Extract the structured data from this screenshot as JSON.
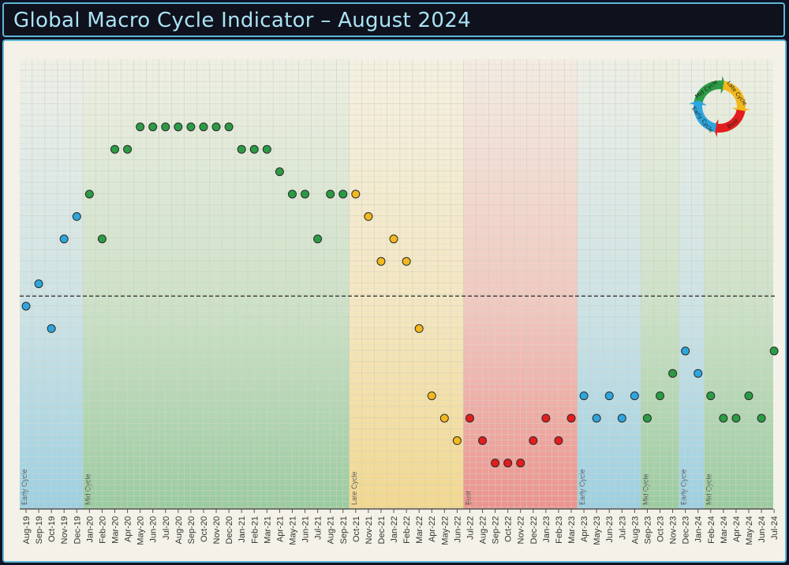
{
  "title": "Global Macro Cycle Indicator – August 2024",
  "colors": {
    "Early Cycle": "#2ea6dd",
    "Mid Cycle": "#2b9c45",
    "Late Cycle": "#f2b81d",
    "Bust": "#e31d1d"
  },
  "legend": {
    "items": [
      "Mid Cycle",
      "Late Cycle",
      "Bust",
      "Early Cycle"
    ]
  },
  "chart_data": {
    "type": "scatter",
    "title": "",
    "xlabel": "",
    "ylabel": "",
    "y_axis": "unlabeled",
    "grid": true,
    "reference_line": {
      "style": "dashed",
      "value": 0.45
    },
    "ylim": [
      -9,
      10.5
    ],
    "legend_position": "top-right",
    "phases": [
      {
        "label": "Early Cycle",
        "start": "Aug-19",
        "end": "Dec-19"
      },
      {
        "label": "Mid Cycle",
        "start": "Jan-20",
        "end": "Sep-21"
      },
      {
        "label": "Late Cycle",
        "start": "Oct-21",
        "end": "Jun-22"
      },
      {
        "label": "Bust",
        "start": "Jul-22",
        "end": "Mar-23"
      },
      {
        "label": "Early Cycle",
        "start": "Apr-23",
        "end": "Aug-23"
      },
      {
        "label": "Mid Cycle",
        "start": "Sep-23",
        "end": "Nov-23"
      },
      {
        "label": "Early Cycle",
        "start": "Dec-23",
        "end": "Jan-24"
      },
      {
        "label": "Mid Cycle",
        "start": "Feb-24",
        "end": "Jul-24"
      }
    ],
    "points": [
      [
        "Aug-19",
        0,
        "Early Cycle"
      ],
      [
        "Sep-19",
        1,
        "Early Cycle"
      ],
      [
        "Oct-19",
        -1,
        "Early Cycle"
      ],
      [
        "Nov-19",
        3,
        "Early Cycle"
      ],
      [
        "Dec-19",
        4,
        "Early Cycle"
      ],
      [
        "Jan-20",
        5,
        "Mid Cycle"
      ],
      [
        "Feb-20",
        3,
        "Mid Cycle"
      ],
      [
        "Mar-20",
        7,
        "Mid Cycle"
      ],
      [
        "Apr-20",
        7,
        "Mid Cycle"
      ],
      [
        "May-20",
        8,
        "Mid Cycle"
      ],
      [
        "Jun-20",
        8,
        "Mid Cycle"
      ],
      [
        "Jul-20",
        8,
        "Mid Cycle"
      ],
      [
        "Aug-20",
        8,
        "Mid Cycle"
      ],
      [
        "Sep-20",
        8,
        "Mid Cycle"
      ],
      [
        "Oct-20",
        8,
        "Mid Cycle"
      ],
      [
        "Nov-20",
        8,
        "Mid Cycle"
      ],
      [
        "Dec-20",
        8,
        "Mid Cycle"
      ],
      [
        "Jan-21",
        7,
        "Mid Cycle"
      ],
      [
        "Feb-21",
        7,
        "Mid Cycle"
      ],
      [
        "Mar-21",
        7,
        "Mid Cycle"
      ],
      [
        "Apr-21",
        6,
        "Mid Cycle"
      ],
      [
        "May-21",
        5,
        "Mid Cycle"
      ],
      [
        "Jun-21",
        5,
        "Mid Cycle"
      ],
      [
        "Jul-21",
        3,
        "Mid Cycle"
      ],
      [
        "Aug-21",
        5,
        "Mid Cycle"
      ],
      [
        "Sep-21",
        5,
        "Mid Cycle"
      ],
      [
        "Oct-21",
        5,
        "Late Cycle"
      ],
      [
        "Nov-21",
        4,
        "Late Cycle"
      ],
      [
        "Dec-21",
        2,
        "Late Cycle"
      ],
      [
        "Jan-22",
        3,
        "Late Cycle"
      ],
      [
        "Feb-22",
        2,
        "Late Cycle"
      ],
      [
        "Mar-22",
        -1,
        "Late Cycle"
      ],
      [
        "Apr-22",
        -4,
        "Late Cycle"
      ],
      [
        "May-22",
        -5,
        "Late Cycle"
      ],
      [
        "Jun-22",
        -6,
        "Late Cycle"
      ],
      [
        "Jul-22",
        -5,
        "Bust"
      ],
      [
        "Aug-22",
        -6,
        "Bust"
      ],
      [
        "Sep-22",
        -7,
        "Bust"
      ],
      [
        "Oct-22",
        -7,
        "Bust"
      ],
      [
        "Nov-22",
        -7,
        "Bust"
      ],
      [
        "Dec-22",
        -6,
        "Bust"
      ],
      [
        "Jan-23",
        -5,
        "Bust"
      ],
      [
        "Feb-23",
        -6,
        "Bust"
      ],
      [
        "Mar-23",
        -5,
        "Bust"
      ],
      [
        "Apr-23",
        -4,
        "Early Cycle"
      ],
      [
        "May-23",
        -5,
        "Early Cycle"
      ],
      [
        "Jun-23",
        -4,
        "Early Cycle"
      ],
      [
        "Jul-23",
        -5,
        "Early Cycle"
      ],
      [
        "Aug-23",
        -4,
        "Early Cycle"
      ],
      [
        "Sep-23",
        -5,
        "Mid Cycle"
      ],
      [
        "Oct-23",
        -4,
        "Mid Cycle"
      ],
      [
        "Nov-23",
        -3,
        "Mid Cycle"
      ],
      [
        "Dec-23",
        -2,
        "Early Cycle"
      ],
      [
        "Jan-24",
        -3,
        "Early Cycle"
      ],
      [
        "Feb-24",
        -4,
        "Mid Cycle"
      ],
      [
        "Mar-24",
        -5,
        "Mid Cycle"
      ],
      [
        "Apr-24",
        -5,
        "Mid Cycle"
      ],
      [
        "May-24",
        -4,
        "Mid Cycle"
      ],
      [
        "Jun-24",
        -5,
        "Mid Cycle"
      ],
      [
        "Jul-24",
        -2,
        "Mid Cycle"
      ]
    ]
  }
}
